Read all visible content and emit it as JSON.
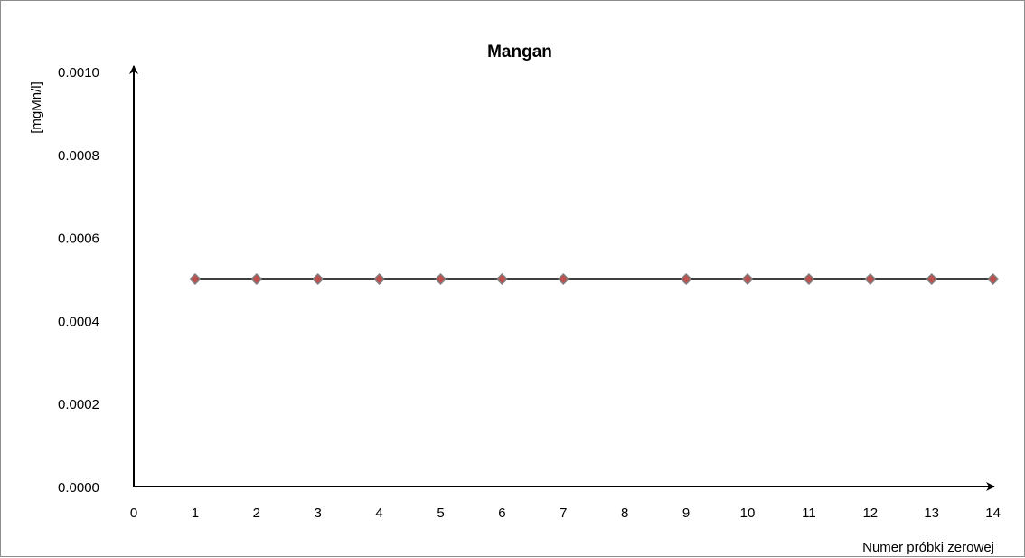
{
  "chart_data": {
    "type": "line",
    "title": "Mangan",
    "xlabel": "Numer próbki zerowej",
    "ylabel": "[mgMn/l]",
    "ylim": [
      0,
      0.001
    ],
    "y_ticks": [
      "0.0000",
      "0.0002",
      "0.0004",
      "0.0006",
      "0.0008",
      "0.0010"
    ],
    "x_ticks": [
      "0",
      "1",
      "2",
      "3",
      "4",
      "5",
      "6",
      "7",
      "8",
      "9",
      "10",
      "11",
      "12",
      "13",
      "14"
    ],
    "x_positions": [
      1,
      2,
      3,
      4,
      5,
      6,
      7,
      9,
      10,
      11,
      12,
      13,
      14
    ],
    "series": [
      {
        "values": [
          0.0005,
          0.0005,
          0.0005,
          0.0005,
          0.0005,
          0.0005,
          0.0005,
          0.0005,
          0.0005,
          0.0005,
          0.0005,
          0.0005,
          0.0005
        ],
        "marker": "diamond",
        "marker_color": "#c0504d",
        "marker_edge_color": "#7f7f7f",
        "line_color": "#404040"
      }
    ],
    "grid": false,
    "legend": "none"
  }
}
